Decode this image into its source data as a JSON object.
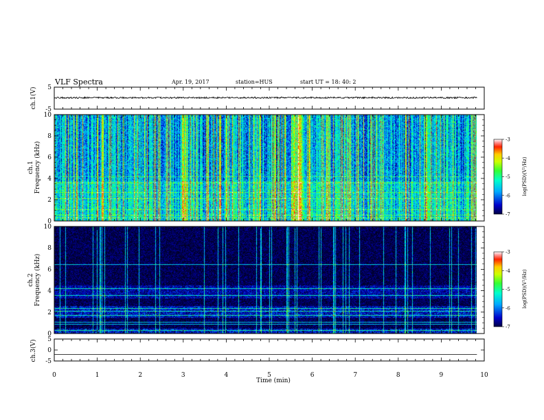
{
  "header": {
    "title": "VLF Spectra",
    "date": "Apr. 19, 2017",
    "station": "station=HUS",
    "start": "start  UT =   18: 40: 2"
  },
  "chart_data": [
    {
      "type": "line",
      "name": "ch1-waveform",
      "ylabel": "ch.1(V)",
      "xlim": [
        0,
        10
      ],
      "ylim": [
        -5,
        5
      ],
      "yticks": [
        "5",
        "-5"
      ],
      "x_end": 9.83,
      "baseline": 0.2,
      "noise_amplitude": 0.35
    },
    {
      "type": "heatmap",
      "name": "ch1-spectrogram",
      "ylabel_line1": "ch.1",
      "ylabel_line2": "Frequency (kHz)",
      "xlim": [
        0,
        10
      ],
      "ylim": [
        0,
        10
      ],
      "yticks": [
        "0",
        "2",
        "4",
        "6",
        "8",
        "10"
      ],
      "x_end": 9.83,
      "colorbar": {
        "label": "log(PSD)(V²/Hz)",
        "range": [
          -7,
          -3
        ],
        "ticks": [
          "-3",
          "-4",
          "-5",
          "-6",
          "-7"
        ]
      },
      "typical_log_psd": -5.6,
      "bright_interval_min": [
        5.5,
        5.8
      ],
      "bands_khz": [
        0.3,
        0.6,
        1.1,
        2.1,
        2.7,
        3.6,
        4.2
      ]
    },
    {
      "type": "heatmap",
      "name": "ch2-spectrogram",
      "ylabel_line1": "ch.2",
      "ylabel_line2": "Frequency (kHz)",
      "xlim": [
        0,
        10
      ],
      "ylim": [
        0,
        10
      ],
      "yticks": [
        "0",
        "2",
        "4",
        "6",
        "8",
        "10"
      ],
      "x_end": 9.83,
      "colorbar": {
        "label": "log(PSD)(V²/Hz)",
        "range": [
          -7,
          -3
        ],
        "ticks": [
          "-3",
          "-4",
          "-5",
          "-6",
          "-7"
        ]
      },
      "typical_log_psd": -6.9,
      "bands_khz": [
        0.3,
        0.9,
        1.1,
        1.7,
        2.1,
        2.4,
        3.6,
        4.2,
        6.5
      ]
    },
    {
      "type": "line",
      "name": "ch3-waveform",
      "ylabel": "ch.3(V)",
      "xlabel": "Time (min)",
      "xlim": [
        0,
        10
      ],
      "ylim": [
        -5,
        5
      ],
      "yticks": [
        "5",
        "0",
        "-5"
      ],
      "xticks": [
        "0",
        "1",
        "2",
        "3",
        "4",
        "5",
        "6",
        "7",
        "8",
        "9",
        "10"
      ],
      "x_end": 9.83,
      "value": -2
    }
  ],
  "colors": {
    "colormap": [
      "#000000",
      "#000066",
      "#0000cc",
      "#0066ff",
      "#00ccff",
      "#33ff99",
      "#66ff33",
      "#ffff00",
      "#ff8800",
      "#ff0000",
      "#ffffff"
    ]
  }
}
